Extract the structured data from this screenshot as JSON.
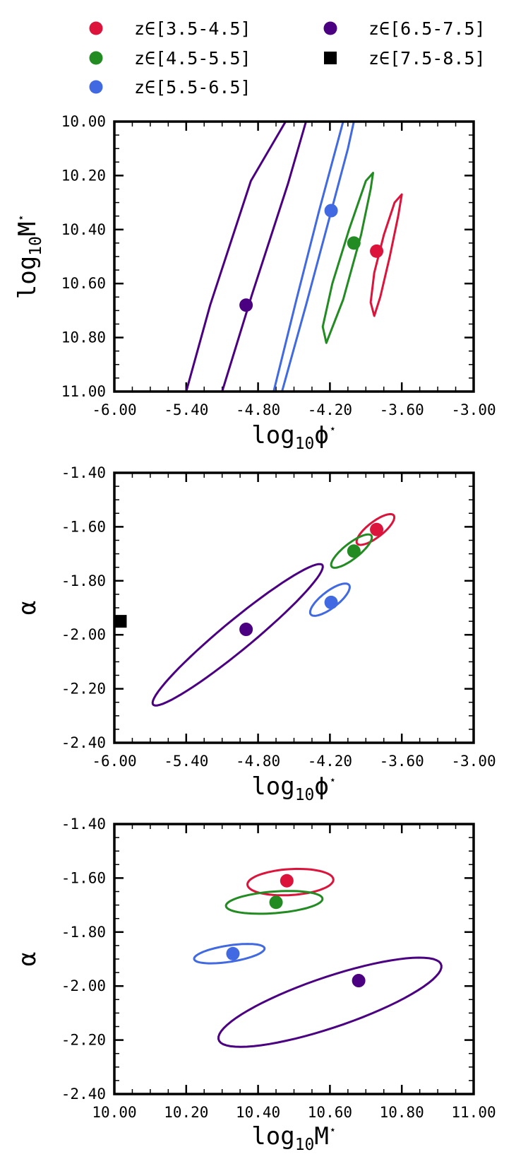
{
  "legend": [
    {
      "label": "z∈[3.5-4.5]",
      "color": "#dc143c",
      "marker": "circle"
    },
    {
      "label": "z∈[4.5-5.5]",
      "color": "#228b22",
      "marker": "circle"
    },
    {
      "label": "z∈[5.5-6.5]",
      "color": "#4169e1",
      "marker": "circle"
    },
    {
      "label": "z∈[6.5-7.5]",
      "color": "#4b0082",
      "marker": "circle"
    },
    {
      "label": "z∈[7.5-8.5]",
      "color": "#000000",
      "marker": "square"
    }
  ],
  "chart_data": [
    {
      "type": "scatter",
      "xlabel": "log₁₀ϕ*",
      "ylabel": "log₁₀M*",
      "xlim": [
        -6.0,
        -3.0
      ],
      "ylim": [
        11.0,
        10.0
      ],
      "y_inverted": true,
      "xticks": [
        "-6.00",
        "-5.40",
        "-4.80",
        "-4.20",
        "-3.60",
        "-3.00"
      ],
      "yticks": [
        "10.00",
        "10.20",
        "10.40",
        "10.60",
        "10.80",
        "11.00"
      ],
      "points": [
        {
          "series": "z∈[3.5-4.5]",
          "x": -3.81,
          "y": 10.48
        },
        {
          "series": "z∈[4.5-5.5]",
          "x": -4.0,
          "y": 10.45
        },
        {
          "series": "z∈[5.5-6.5]",
          "x": -4.19,
          "y": 10.33
        },
        {
          "series": "z∈[6.5-7.5]",
          "x": -4.9,
          "y": 10.68
        }
      ],
      "contours": [
        {
          "series": "z∈[3.5-4.5]",
          "path": [
            [
              -3.6,
              10.27
            ],
            [
              -3.63,
              10.35
            ],
            [
              -3.7,
              10.5
            ],
            [
              -3.78,
              10.65
            ],
            [
              -3.83,
              10.72
            ],
            [
              -3.86,
              10.67
            ],
            [
              -3.83,
              10.56
            ],
            [
              -3.75,
              10.42
            ],
            [
              -3.66,
              10.3
            ],
            [
              -3.6,
              10.27
            ]
          ]
        },
        {
          "series": "z∈[4.5-5.5]",
          "path": [
            [
              -3.84,
              10.19
            ],
            [
              -3.86,
              10.25
            ],
            [
              -3.94,
              10.42
            ],
            [
              -4.09,
              10.66
            ],
            [
              -4.23,
              10.82
            ],
            [
              -4.26,
              10.76
            ],
            [
              -4.18,
              10.6
            ],
            [
              -4.04,
              10.4
            ],
            [
              -3.9,
              10.22
            ],
            [
              -3.84,
              10.19
            ]
          ]
        },
        {
          "series": "z∈[5.5-6.5]",
          "path": [
            [
              -4.0,
              10.0
            ],
            [
              -4.05,
              10.1
            ],
            [
              -4.2,
              10.35
            ],
            [
              -4.4,
              10.68
            ],
            [
              -4.6,
              11.0
            ],
            [
              -4.67,
              11.0
            ],
            [
              -4.48,
              10.66
            ],
            [
              -4.29,
              10.33
            ],
            [
              -4.12,
              10.05
            ],
            [
              -4.09,
              10.0
            ],
            [
              -4.0,
              10.0
            ]
          ]
        },
        {
          "series": "z∈[6.5-7.5]",
          "path": [
            [
              -4.4,
              10.0
            ],
            [
              -4.55,
              10.23
            ],
            [
              -4.85,
              10.64
            ],
            [
              -5.1,
              11.0
            ],
            [
              -5.4,
              11.0
            ],
            [
              -5.2,
              10.68
            ],
            [
              -4.86,
              10.22
            ],
            [
              -4.57,
              10.0
            ],
            [
              -4.4,
              10.0
            ]
          ]
        }
      ]
    },
    {
      "type": "scatter",
      "xlabel": "log₁₀ϕ*",
      "ylabel": "α",
      "xlim": [
        -6.0,
        -3.0
      ],
      "ylim": [
        -2.4,
        -1.4
      ],
      "xticks": [
        "-6.00",
        "-5.40",
        "-4.80",
        "-4.20",
        "-3.60",
        "-3.00"
      ],
      "yticks": [
        "-1.40",
        "-1.60",
        "-1.80",
        "-2.00",
        "-2.20",
        "-2.40"
      ],
      "points": [
        {
          "series": "z∈[3.5-4.5]",
          "x": -3.81,
          "y": -1.61
        },
        {
          "series": "z∈[4.5-5.5]",
          "x": -4.0,
          "y": -1.69
        },
        {
          "series": "z∈[5.5-6.5]",
          "x": -4.19,
          "y": -1.88
        },
        {
          "series": "z∈[6.5-7.5]",
          "x": -4.9,
          "y": -1.98
        },
        {
          "series": "z∈[7.5-8.5]",
          "x": -5.95,
          "y": -1.95
        }
      ],
      "contours": [
        {
          "series": "z∈[3.5-4.5]",
          "ellipse": {
            "cx": -3.82,
            "cy": -1.61,
            "a": 0.22,
            "b": 0.025,
            "angle_deg": 48
          }
        },
        {
          "series": "z∈[4.5-5.5]",
          "ellipse": {
            "cx": -4.02,
            "cy": -1.69,
            "a": 0.24,
            "b": 0.025,
            "angle_deg": 48
          }
        },
        {
          "series": "z∈[5.5-6.5]",
          "ellipse": {
            "cx": -4.2,
            "cy": -1.87,
            "a": 0.23,
            "b": 0.027,
            "angle_deg": 48
          }
        },
        {
          "series": "z∈[6.5-7.5]",
          "ellipse": {
            "cx": -4.97,
            "cy": -2.0,
            "a": 1.05,
            "b": 0.048,
            "angle_deg": 48
          }
        }
      ]
    },
    {
      "type": "scatter",
      "xlabel": "log₁₀M*",
      "ylabel": "α",
      "xlim": [
        10.0,
        11.0
      ],
      "ylim": [
        -2.4,
        -1.4
      ],
      "xticks": [
        "10.00",
        "10.20",
        "10.40",
        "10.60",
        "10.80",
        "11.00"
      ],
      "yticks": [
        "-1.40",
        "-1.60",
        "-1.80",
        "-2.00",
        "-2.20",
        "-2.40"
      ],
      "points": [
        {
          "series": "z∈[3.5-4.5]",
          "x": 10.48,
          "y": -1.61
        },
        {
          "series": "z∈[4.5-5.5]",
          "x": 10.45,
          "y": -1.69
        },
        {
          "series": "z∈[5.5-6.5]",
          "x": 10.33,
          "y": -1.88
        },
        {
          "series": "z∈[6.5-7.5]",
          "x": 10.68,
          "y": -1.98
        }
      ],
      "contours": [
        {
          "series": "z∈[3.5-4.5]",
          "ellipse": {
            "cx": 10.49,
            "cy": -1.615,
            "a": 0.12,
            "b": 0.048,
            "angle_deg": 5
          }
        },
        {
          "series": "z∈[4.5-5.5]",
          "ellipse": {
            "cx": 10.445,
            "cy": -1.69,
            "a": 0.135,
            "b": 0.04,
            "angle_deg": 6
          }
        },
        {
          "series": "z∈[5.5-6.5]",
          "ellipse": {
            "cx": 10.32,
            "cy": -1.88,
            "a": 0.1,
            "b": 0.03,
            "angle_deg": 12
          }
        },
        {
          "series": "z∈[6.5-7.5]",
          "ellipse": {
            "cx": 10.6,
            "cy": -2.06,
            "a": 0.34,
            "b": 0.09,
            "angle_deg": 25
          }
        }
      ]
    }
  ]
}
